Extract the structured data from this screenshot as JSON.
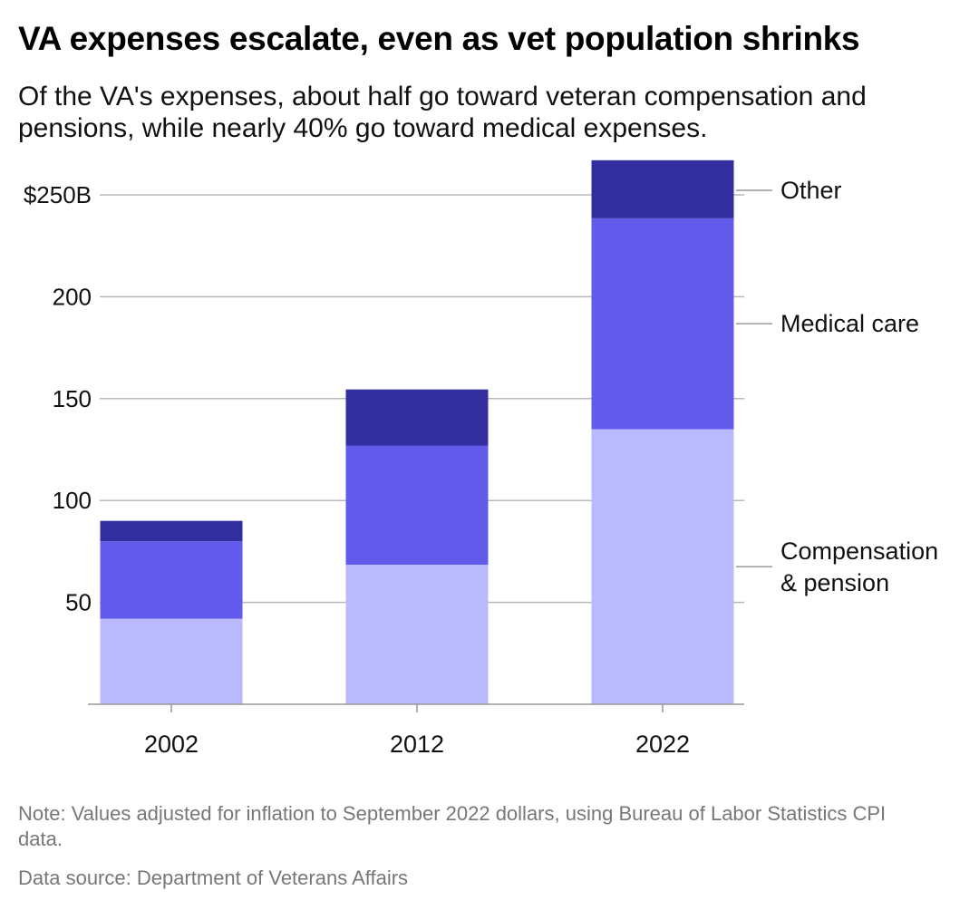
{
  "title": "VA expenses escalate, even as vet population shrinks",
  "subtitle": "Of the VA's expenses, about half go toward veteran compensation and pensions, while nearly 40% go toward medical expenses.",
  "note": "Note: Values adjusted for inflation to September 2022 dollars, using Bureau of Labor Statistics CPI data.",
  "source": "Data source: Department of Veterans Affairs",
  "chart_data": {
    "type": "bar",
    "stacked": true,
    "categories": [
      "2002",
      "2012",
      "2022"
    ],
    "series": [
      {
        "name": "Compensation & pension",
        "label_lines": [
          "Compensation",
          "& pension"
        ],
        "color": "#bbb9fd",
        "values": [
          42,
          68.5,
          135
        ]
      },
      {
        "name": "Medical care",
        "label_lines": [
          "Medical care"
        ],
        "color": "#625aea",
        "values": [
          38,
          58.5,
          103.5
        ]
      },
      {
        "name": "Other",
        "label_lines": [
          "Other"
        ],
        "color": "#332ea0",
        "values": [
          10,
          27.5,
          28.5
        ]
      }
    ],
    "yticks": [
      50,
      100,
      150,
      200,
      250
    ],
    "ytick_labels": [
      "50",
      "100",
      "150",
      "200",
      "$250B"
    ],
    "ylim": [
      0,
      270
    ],
    "grid": true,
    "legend": "right, inline labels"
  }
}
